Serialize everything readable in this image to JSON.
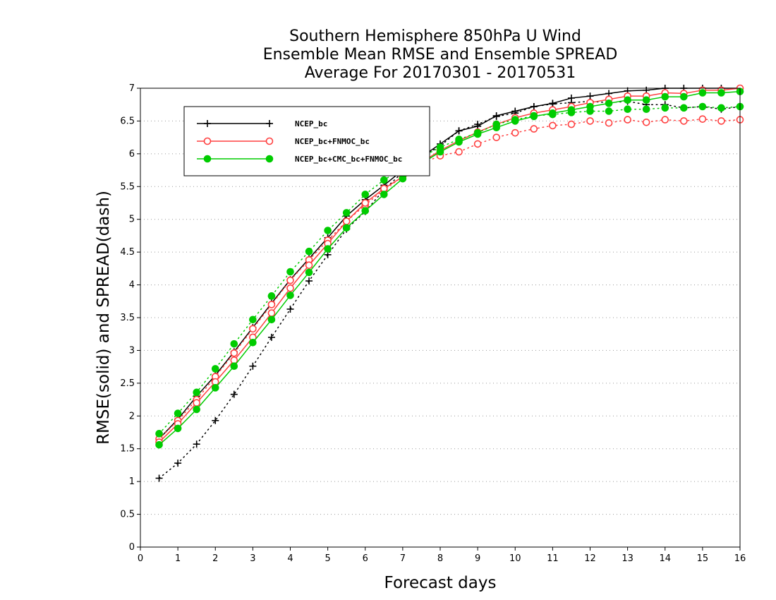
{
  "chart_data": {
    "type": "line",
    "title": [
      "Southern Hemisphere 850hPa U Wind",
      "Ensemble Mean RMSE and Ensemble SPREAD",
      "Average For 20170301 - 20170531"
    ],
    "xlabel": "Forecast days",
    "ylabel": "RMSE(solid) and SPREAD(dash)",
    "xlim": [
      0,
      16
    ],
    "ylim": [
      0,
      7
    ],
    "xticks": [
      "0",
      "1",
      "2",
      "3",
      "4",
      "5",
      "6",
      "7",
      "8",
      "9",
      "10",
      "11",
      "12",
      "13",
      "14",
      "15",
      "16"
    ],
    "yticks": [
      "0",
      "0.5",
      "1",
      "1.5",
      "2",
      "2.5",
      "3",
      "3.5",
      "4",
      "4.5",
      "5",
      "5.5",
      "6",
      "6.5",
      "7"
    ],
    "grid": "horizontal dotted",
    "legend_position": "top-left",
    "x": [
      0.5,
      1,
      1.5,
      2,
      2.5,
      3,
      3.5,
      4,
      4.5,
      5,
      5.5,
      6,
      6.5,
      7,
      7.5,
      8,
      8.5,
      9,
      9.5,
      10,
      10.5,
      11,
      11.5,
      12,
      12.5,
      13,
      13.5,
      14,
      14.5,
      15,
      15.5,
      16
    ],
    "series": [
      {
        "name": "NCEP_bc",
        "color": "#000000",
        "marker": "plus",
        "rmse": [
          1.65,
          1.95,
          2.3,
          2.62,
          2.98,
          3.35,
          3.72,
          4.08,
          4.4,
          4.72,
          5.05,
          5.3,
          5.52,
          5.75,
          5.95,
          6.15,
          6.35,
          6.42,
          6.58,
          6.65,
          6.72,
          6.77,
          6.85,
          6.88,
          6.92,
          6.96,
          6.97,
          7.0,
          7.0,
          7.0,
          7.0,
          7.0
        ],
        "spread": [
          1.05,
          1.28,
          1.57,
          1.93,
          2.33,
          2.76,
          3.2,
          3.63,
          4.06,
          4.46,
          4.85,
          5.12,
          5.45,
          5.72,
          5.95,
          6.12,
          6.35,
          6.45,
          6.57,
          6.62,
          6.72,
          6.76,
          6.78,
          6.8,
          6.78,
          6.8,
          6.75,
          6.75,
          6.7,
          6.72,
          6.68,
          6.72
        ]
      },
      {
        "name": "NCEP_bc+FNMOC_bc",
        "color": "#ff4040",
        "marker": "circle",
        "rmse": [
          1.6,
          1.88,
          2.2,
          2.52,
          2.85,
          3.2,
          3.57,
          3.95,
          4.3,
          4.63,
          4.97,
          5.25,
          5.47,
          5.65,
          5.87,
          6.05,
          6.2,
          6.33,
          6.45,
          6.55,
          6.62,
          6.67,
          6.72,
          6.78,
          6.83,
          6.88,
          6.88,
          6.93,
          6.92,
          6.97,
          6.97,
          7.0
        ],
        "spread": [
          1.65,
          1.93,
          2.25,
          2.6,
          2.96,
          3.33,
          3.7,
          4.07,
          4.38,
          4.68,
          4.97,
          5.22,
          5.45,
          5.65,
          5.85,
          5.97,
          6.03,
          6.15,
          6.25,
          6.32,
          6.38,
          6.43,
          6.45,
          6.5,
          6.47,
          6.52,
          6.48,
          6.52,
          6.5,
          6.53,
          6.5,
          6.52
        ]
      },
      {
        "name": "NCEP_bc+CMC_bc+FNMOC_bc",
        "color": "#00cc00",
        "marker": "filled-circle",
        "rmse": [
          1.56,
          1.81,
          2.1,
          2.43,
          2.76,
          3.12,
          3.47,
          3.84,
          4.19,
          4.55,
          4.87,
          5.13,
          5.38,
          5.62,
          5.85,
          6.03,
          6.18,
          6.3,
          6.4,
          6.5,
          6.57,
          6.62,
          6.67,
          6.72,
          6.77,
          6.82,
          6.82,
          6.87,
          6.87,
          6.93,
          6.93,
          6.95
        ],
        "spread": [
          1.73,
          2.04,
          2.36,
          2.72,
          3.1,
          3.47,
          3.83,
          4.2,
          4.51,
          4.83,
          5.1,
          5.38,
          5.6,
          5.78,
          5.95,
          6.1,
          6.22,
          6.32,
          6.45,
          6.52,
          6.58,
          6.6,
          6.63,
          6.65,
          6.65,
          6.68,
          6.68,
          6.7,
          6.7,
          6.72,
          6.7,
          6.72
        ]
      }
    ]
  }
}
